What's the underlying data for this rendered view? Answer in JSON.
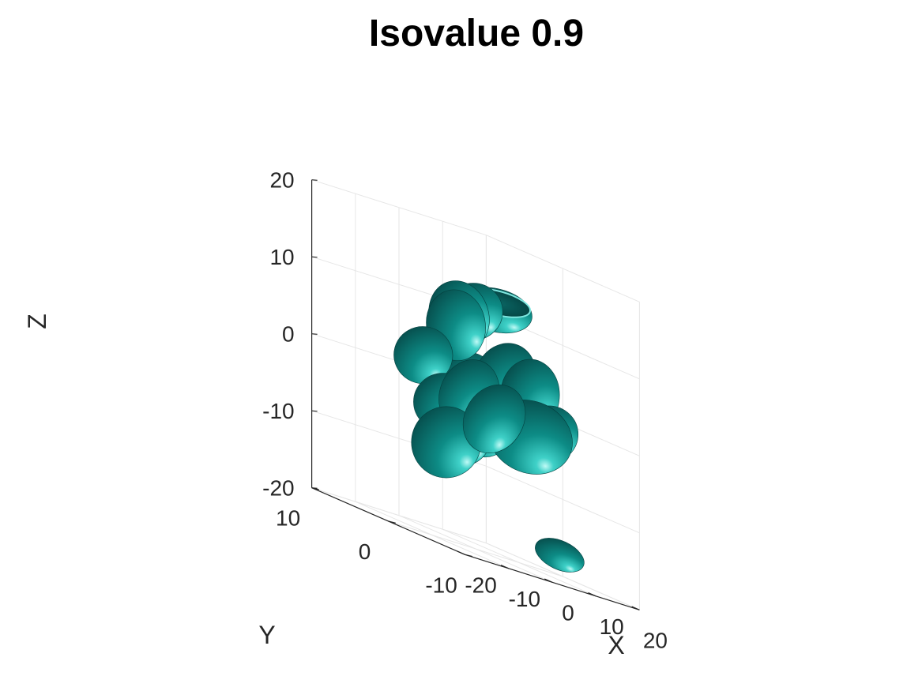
{
  "chart_data": {
    "type": "isosurface",
    "title": "Isovalue 0.9",
    "xlabel": "X",
    "ylabel": "Y",
    "zlabel": "Z",
    "xlim": [
      -20,
      20
    ],
    "ylim": [
      -10,
      10
    ],
    "zlim": [
      -20,
      20
    ],
    "xticks": [
      "-20",
      "-10",
      "0",
      "10",
      "20"
    ],
    "yticks": [
      "-10",
      "0",
      "10"
    ],
    "zticks": [
      "-20",
      "-10",
      "0",
      "10",
      "20"
    ],
    "grid": true,
    "surface_color": "#008080",
    "blobs": [
      {
        "cx": -1,
        "cy": 2,
        "cz": 8,
        "rx": 5,
        "ry": 4,
        "rz": 5,
        "rot": -10
      },
      {
        "cx": 5,
        "cy": 5,
        "cz": 9,
        "rx": 5,
        "ry": 4,
        "rz": 5,
        "rot": -20
      },
      {
        "cx": 10,
        "cy": 6,
        "cz": 10,
        "rx": 5,
        "ry": 4,
        "rz": 4,
        "rot": 0
      },
      {
        "cx": 17,
        "cy": 7,
        "cz": 11,
        "rx": 6,
        "ry": 5,
        "rz": 3,
        "rot": 15,
        "open_top": true
      },
      {
        "cx": -12,
        "cy": 0,
        "cz": 3,
        "rx": 6,
        "ry": 4,
        "rz": 4,
        "rot": 15
      },
      {
        "cx": -11,
        "cy": -2,
        "cz": -2,
        "rx": 5,
        "ry": 4,
        "rz": 4,
        "rot": 0
      },
      {
        "cx": 5,
        "cy": 4,
        "cz": 1,
        "rx": 6,
        "ry": 4,
        "rz": 4,
        "rot": 0
      },
      {
        "cx": 12,
        "cy": 3,
        "cz": 3,
        "rx": 7,
        "ry": 4,
        "rz": 5,
        "rot": 20
      },
      {
        "cx": 16,
        "cy": 2,
        "cz": 2,
        "rx": 5,
        "ry": 4,
        "rz": 5,
        "rot": 0
      },
      {
        "cx": -5,
        "cy": -2,
        "cz": 0,
        "rx": 6,
        "ry": 4,
        "rz": 5,
        "rot": 20
      },
      {
        "cx": -1,
        "cy": -3,
        "cz": -2,
        "rx": 6,
        "ry": 4,
        "rz": 5,
        "rot": 30
      },
      {
        "cx": 3,
        "cy": 0,
        "cz": -3,
        "rx": 5,
        "ry": 4,
        "rz": 5,
        "rot": 20
      },
      {
        "cx": 9,
        "cy": -2,
        "cz": -3,
        "rx": 10,
        "ry": 4,
        "rz": 5,
        "rot": 25
      },
      {
        "cx": 15,
        "cy": -1,
        "cz": -2,
        "rx": 6,
        "ry": 4,
        "rz": 4,
        "rot": 0
      },
      {
        "cx": -12,
        "cy": -3,
        "cz": -7,
        "rx": 8,
        "ry": 4,
        "rz": 5,
        "rot": 0
      },
      {
        "cx": -5,
        "cy": -1,
        "cz": -6,
        "rx": 5,
        "ry": 4,
        "rz": 4,
        "rot": 0
      },
      {
        "cx": 14,
        "cy": -3,
        "cz": -17,
        "rx": 6,
        "ry": 3,
        "rz": 2,
        "rot": 25
      }
    ]
  }
}
